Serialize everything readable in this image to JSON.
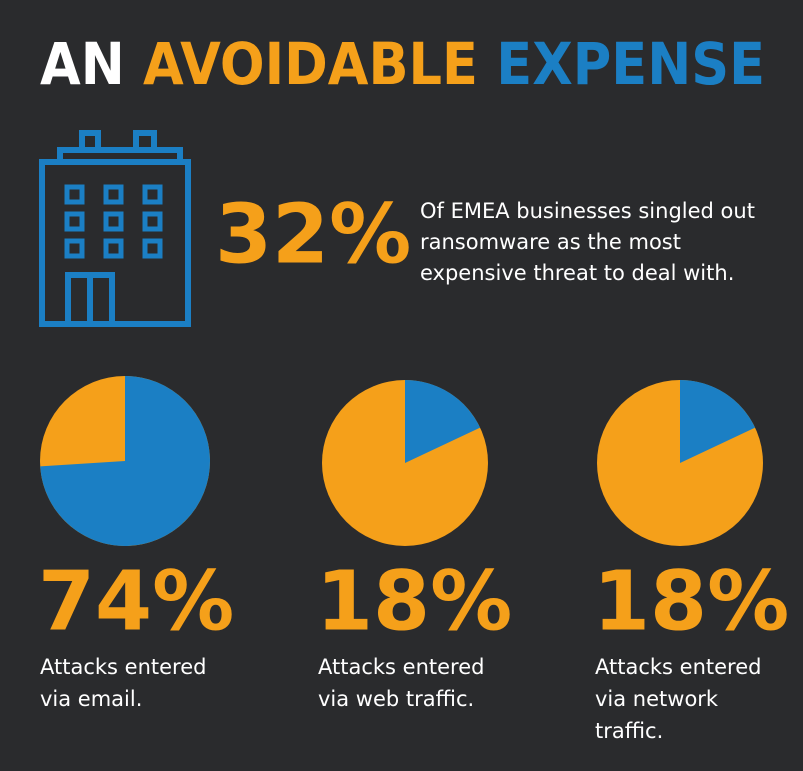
{
  "header": {
    "title_parts": [
      {
        "text": "AN",
        "color": "#ffffff"
      },
      {
        "text": "AVOIDABLE",
        "color": "#f5a01a"
      },
      {
        "text": "EXPENSE",
        "color": "#1b7fc4"
      }
    ]
  },
  "highlight": {
    "stat": "32%",
    "lines": [
      "Of EMEA businesses singled out",
      "ransomware as the most",
      "expensive threat to deal with."
    ]
  },
  "chart_data": [
    {
      "type": "pie",
      "values": [
        74
      ],
      "value_labels": [
        "74%"
      ],
      "caption": [
        "Attacks entered",
        "via email."
      ],
      "color": "#1b7fc4",
      "base_color": "#f5a01a"
    },
    {
      "type": "pie",
      "values": [
        18
      ],
      "value_labels": [
        "18%"
      ],
      "caption": [
        "Attacks entered",
        "via web traffic."
      ],
      "color": "#1b7fc4",
      "base_color": "#f5a01a"
    },
    {
      "type": "pie",
      "values": [
        18
      ],
      "value_labels": [
        "18%"
      ],
      "caption": [
        "Attacks entered",
        "via network",
        "traffic."
      ],
      "color": "#1b7fc4",
      "base_color": "#f5a01a"
    }
  ]
}
